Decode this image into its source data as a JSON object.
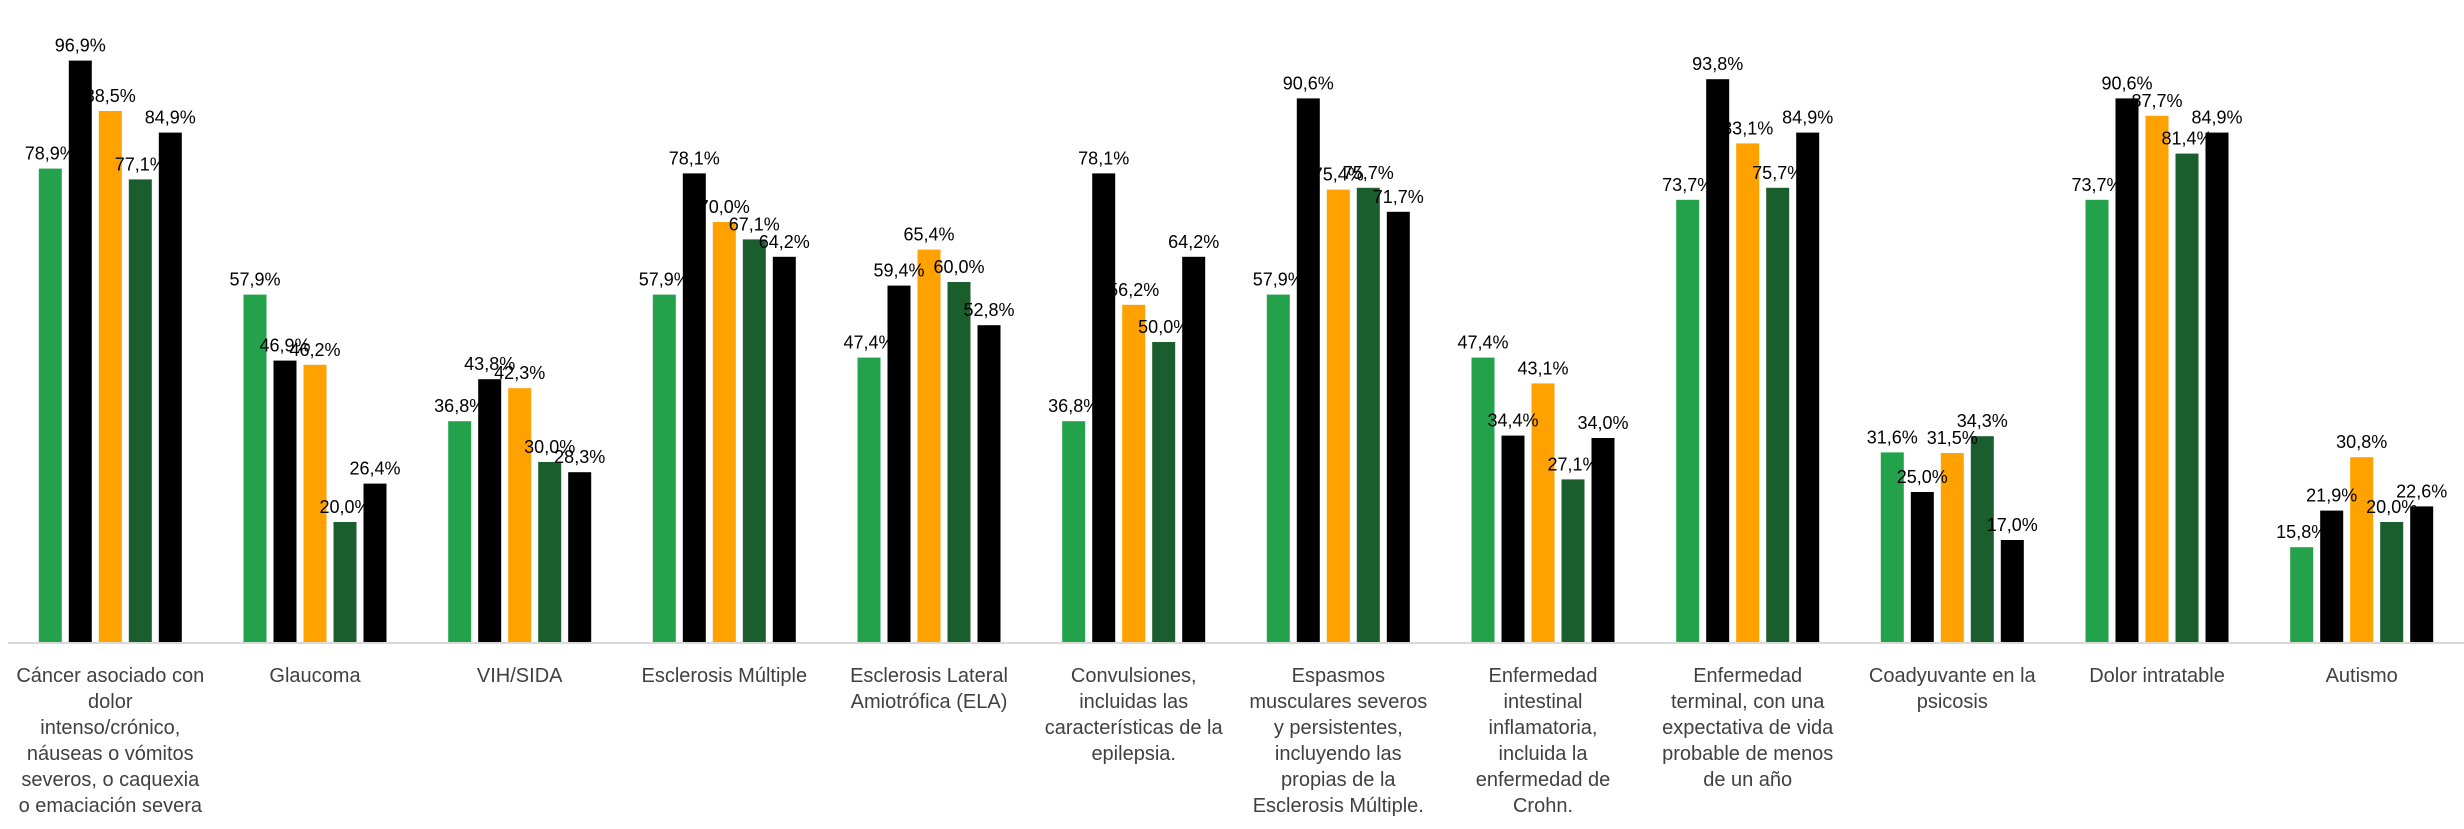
{
  "chart_data": {
    "type": "bar",
    "title": "",
    "xlabel": "",
    "ylabel": "",
    "ylim": [
      0,
      100
    ],
    "grid": false,
    "legend": "none",
    "value_suffix": "%",
    "decimal_separator": ",",
    "colors": [
      "#24a14b",
      "#000000",
      "#ffa200",
      "#1a5e2e",
      "#000000"
    ],
    "categories": [
      [
        "Cáncer asociado con",
        "dolor",
        "intenso/crónico,",
        "náuseas o vómitos",
        "severos, o caquexia",
        "o emaciación severa"
      ],
      [
        "Glaucoma"
      ],
      [
        "VIH/SIDA"
      ],
      [
        "Esclerosis Múltiple"
      ],
      [
        "Esclerosis Lateral",
        "Amiotrófica (ELA)"
      ],
      [
        "Convulsiones,",
        "incluidas las",
        "características de la",
        "epilepsia."
      ],
      [
        "Espasmos",
        "musculares severos",
        "y persistentes,",
        "incluyendo las",
        "propias de la",
        "Esclerosis Múltiple."
      ],
      [
        "Enfermedad",
        "intestinal",
        "inflamatoria,",
        "incluida la",
        "enfermedad de",
        "Crohn."
      ],
      [
        "Enfermedad",
        "terminal, con una",
        "expectativa de vida",
        "probable de menos",
        "de un año"
      ],
      [
        "Coadyuvante en la",
        "psicosis"
      ],
      [
        "Dolor intratable"
      ],
      [
        "Autismo"
      ]
    ],
    "series": [
      {
        "values": [
          78.9,
          57.9,
          36.8,
          57.9,
          47.4,
          36.8,
          57.9,
          47.4,
          73.7,
          31.6,
          73.7,
          15.8
        ]
      },
      {
        "values": [
          96.9,
          46.9,
          43.8,
          78.1,
          59.4,
          78.1,
          90.6,
          34.4,
          93.8,
          25.0,
          90.6,
          21.9
        ]
      },
      {
        "values": [
          88.5,
          46.2,
          42.3,
          70.0,
          65.4,
          56.2,
          75.4,
          43.1,
          83.1,
          31.5,
          87.7,
          30.8
        ]
      },
      {
        "values": [
          77.1,
          20.0,
          30.0,
          67.1,
          60.0,
          50.0,
          75.7,
          27.1,
          75.7,
          34.3,
          81.4,
          20.0
        ]
      },
      {
        "values": [
          84.9,
          26.4,
          28.3,
          64.2,
          52.8,
          64.2,
          71.7,
          34.0,
          84.9,
          17.0,
          84.9,
          22.6
        ]
      }
    ]
  }
}
